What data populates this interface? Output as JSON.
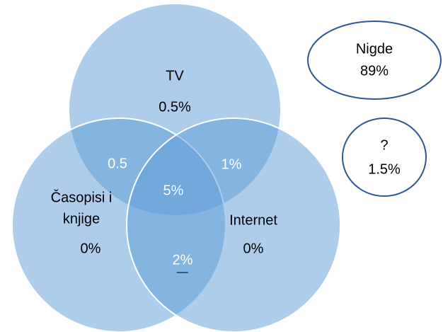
{
  "title": null,
  "sets": [
    {
      "label": "TV",
      "value": "0.5%"
    },
    {
      "label": [
        "Časopisi i",
        "knjige"
      ],
      "value": "0%"
    },
    {
      "label": "Internet",
      "value": "0%"
    }
  ],
  "overlaps": {
    "tv_casopisi": "0.5",
    "tv_internet": "1%",
    "all": "5%",
    "casopisi_internet": "2%"
  },
  "outside": [
    {
      "label": "Nigde",
      "value": "89%"
    },
    {
      "label": "?",
      "value": "1.5%"
    }
  ]
}
